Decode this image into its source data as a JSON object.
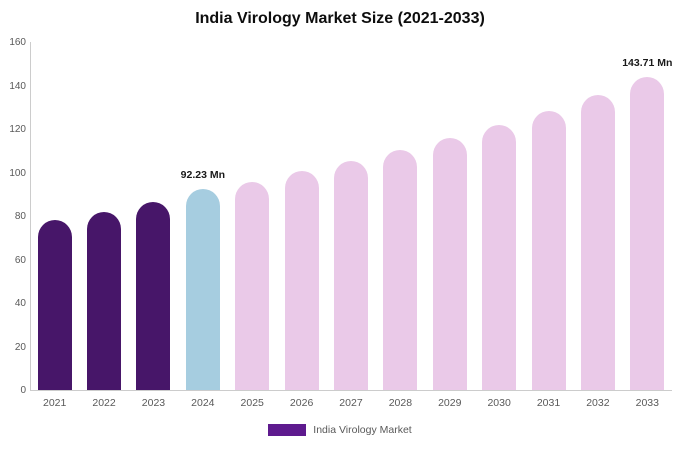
{
  "title": "India Virology Market Size (2021-2033)",
  "legend": {
    "label": "India Virology Market",
    "color": "#5e1a8e"
  },
  "chart_data": {
    "type": "bar",
    "title": "India Virology Market Size (2021-2033)",
    "xlabel": "",
    "ylabel": "",
    "categories": [
      "2021",
      "2022",
      "2023",
      "2024",
      "2025",
      "2026",
      "2027",
      "2028",
      "2029",
      "2030",
      "2031",
      "2032",
      "2033"
    ],
    "values": [
      78,
      82,
      86.5,
      92.23,
      95.5,
      100.5,
      105.5,
      110.5,
      116,
      122,
      128.5,
      135.5,
      143.71
    ],
    "bar_colors": [
      "#471669",
      "#471669",
      "#471669",
      "#a6cde0",
      "#eac9e8",
      "#eac9e8",
      "#eac9e8",
      "#eac9e8",
      "#eac9e8",
      "#eac9e8",
      "#eac9e8",
      "#eac9e8",
      "#eac9e8"
    ],
    "ylim": [
      0,
      160
    ],
    "yticks": [
      0,
      20,
      40,
      60,
      80,
      100,
      120,
      140,
      160
    ],
    "grid": false,
    "legend_position": "bottom",
    "annotations": [
      {
        "category": "2024",
        "text": "92.23 Mn"
      },
      {
        "category": "2033",
        "text": "143.71 Mn"
      }
    ]
  }
}
